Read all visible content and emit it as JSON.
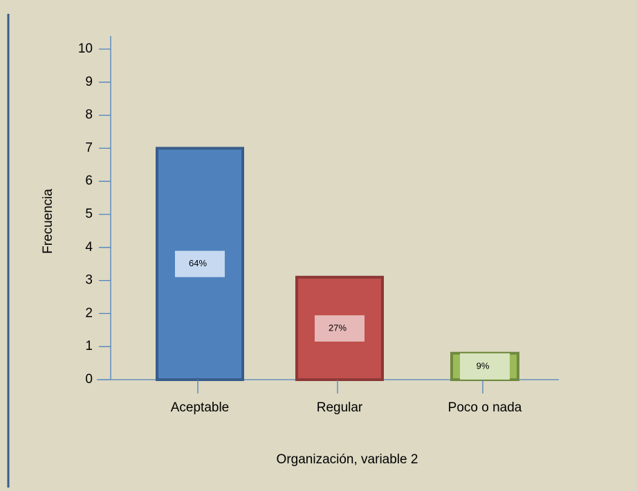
{
  "chart_data": {
    "type": "bar",
    "categories": [
      "Aceptable",
      "Regular",
      "Poco o nada"
    ],
    "values": [
      7,
      3.1,
      0.8
    ],
    "data_labels": [
      "64%",
      "27%",
      "9%"
    ],
    "colors": [
      "#4f81bd",
      "#c0504d",
      "#9bbb59"
    ],
    "ylim": [
      0,
      10
    ],
    "yticks": [
      0,
      1,
      2,
      3,
      4,
      5,
      6,
      7,
      8,
      9,
      10
    ],
    "ylabel": "Frecuencia",
    "xlabel": "Organización, variable 2"
  }
}
